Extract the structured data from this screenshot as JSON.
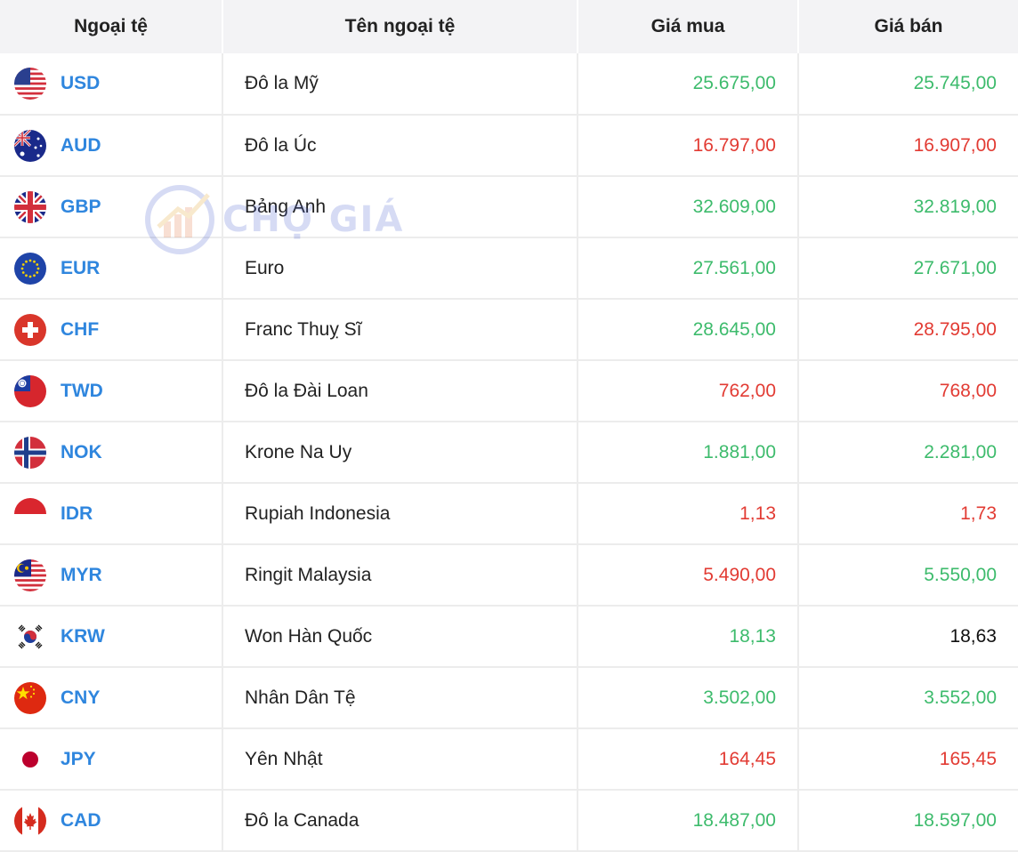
{
  "header": {
    "col_code": "Ngoại tệ",
    "col_name": "Tên ngoại tệ",
    "col_buy": "Giá mua",
    "col_sell": "Giá bán"
  },
  "watermark": {
    "text": "CHỢ GIÁ"
  },
  "colors": {
    "up": "#3dbb6c",
    "down": "#e23b33",
    "same": "#111111",
    "code": "#2f86de"
  },
  "rows": [
    {
      "flag": "us-flag-icon",
      "code": "USD",
      "name": "Đô la Mỹ",
      "buy": "25.675,00",
      "buy_trend": "up",
      "sell": "25.745,00",
      "sell_trend": "up"
    },
    {
      "flag": "au-flag-icon",
      "code": "AUD",
      "name": "Đô la Úc",
      "buy": "16.797,00",
      "buy_trend": "down",
      "sell": "16.907,00",
      "sell_trend": "down"
    },
    {
      "flag": "gb-flag-icon",
      "code": "GBP",
      "name": "Bảng Anh",
      "buy": "32.609,00",
      "buy_trend": "up",
      "sell": "32.819,00",
      "sell_trend": "up"
    },
    {
      "flag": "eu-flag-icon",
      "code": "EUR",
      "name": "Euro",
      "buy": "27.561,00",
      "buy_trend": "up",
      "sell": "27.671,00",
      "sell_trend": "up"
    },
    {
      "flag": "ch-flag-icon",
      "code": "CHF",
      "name": "Franc Thuỵ Sĩ",
      "buy": "28.645,00",
      "buy_trend": "up",
      "sell": "28.795,00",
      "sell_trend": "down"
    },
    {
      "flag": "tw-flag-icon",
      "code": "TWD",
      "name": "Đô la Đài Loan",
      "buy": "762,00",
      "buy_trend": "down",
      "sell": "768,00",
      "sell_trend": "down"
    },
    {
      "flag": "no-flag-icon",
      "code": "NOK",
      "name": "Krone Na Uy",
      "buy": "1.881,00",
      "buy_trend": "up",
      "sell": "2.281,00",
      "sell_trend": "up"
    },
    {
      "flag": "id-flag-icon",
      "code": "IDR",
      "name": "Rupiah Indonesia",
      "buy": "1,13",
      "buy_trend": "down",
      "sell": "1,73",
      "sell_trend": "down"
    },
    {
      "flag": "my-flag-icon",
      "code": "MYR",
      "name": "Ringit Malaysia",
      "buy": "5.490,00",
      "buy_trend": "down",
      "sell": "5.550,00",
      "sell_trend": "up"
    },
    {
      "flag": "kr-flag-icon",
      "code": "KRW",
      "name": "Won Hàn Quốc",
      "buy": "18,13",
      "buy_trend": "up",
      "sell": "18,63",
      "sell_trend": "same"
    },
    {
      "flag": "cn-flag-icon",
      "code": "CNY",
      "name": "Nhân Dân Tệ",
      "buy": "3.502,00",
      "buy_trend": "up",
      "sell": "3.552,00",
      "sell_trend": "up"
    },
    {
      "flag": "jp-flag-icon",
      "code": "JPY",
      "name": "Yên Nhật",
      "buy": "164,45",
      "buy_trend": "down",
      "sell": "165,45",
      "sell_trend": "down"
    },
    {
      "flag": "ca-flag-icon",
      "code": "CAD",
      "name": "Đô la Canada",
      "buy": "18.487,00",
      "buy_trend": "up",
      "sell": "18.597,00",
      "sell_trend": "up"
    }
  ]
}
